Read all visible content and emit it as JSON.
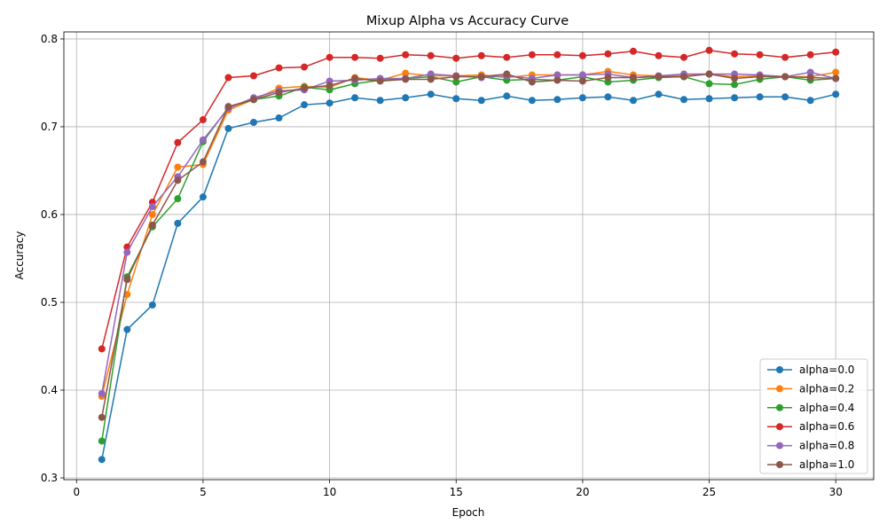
{
  "chart_data": {
    "type": "line",
    "title": "Mixup Alpha vs Accuracy Curve",
    "xlabel": "Epoch",
    "ylabel": "Accuracy",
    "xlim": [
      -0.5,
      31.5
    ],
    "ylim": [
      0.298,
      0.808
    ],
    "xticks": [
      0,
      5,
      10,
      15,
      20,
      25,
      30
    ],
    "yticks": [
      0.3,
      0.4,
      0.5,
      0.6,
      0.7,
      0.8
    ],
    "grid": true,
    "legend_position": "bottom-right",
    "x": [
      1,
      2,
      3,
      4,
      5,
      6,
      7,
      8,
      9,
      10,
      11,
      12,
      13,
      14,
      15,
      16,
      17,
      18,
      19,
      20,
      21,
      22,
      23,
      24,
      25,
      26,
      27,
      28,
      29,
      30
    ],
    "series": [
      {
        "name": "alpha=0.0",
        "color": "#1f77b4",
        "values": [
          0.321,
          0.469,
          0.497,
          0.59,
          0.62,
          0.698,
          0.705,
          0.71,
          0.725,
          0.727,
          0.733,
          0.73,
          0.733,
          0.737,
          0.732,
          0.73,
          0.735,
          0.73,
          0.731,
          0.733,
          0.734,
          0.73,
          0.737,
          0.731,
          0.732,
          0.733,
          0.734,
          0.734,
          0.73,
          0.737
        ]
      },
      {
        "name": "alpha=0.2",
        "color": "#ff7f0e",
        "values": [
          0.393,
          0.509,
          0.6,
          0.654,
          0.657,
          0.719,
          0.731,
          0.744,
          0.746,
          0.745,
          0.756,
          0.753,
          0.761,
          0.758,
          0.758,
          0.759,
          0.756,
          0.759,
          0.759,
          0.759,
          0.763,
          0.759,
          0.758,
          0.758,
          0.76,
          0.757,
          0.758,
          0.757,
          0.757,
          0.762
        ]
      },
      {
        "name": "alpha=0.4",
        "color": "#2ca02c",
        "values": [
          0.342,
          0.529,
          0.586,
          0.618,
          0.683,
          0.722,
          0.731,
          0.735,
          0.745,
          0.742,
          0.749,
          0.753,
          0.755,
          0.757,
          0.751,
          0.757,
          0.753,
          0.754,
          0.753,
          0.757,
          0.751,
          0.753,
          0.756,
          0.757,
          0.749,
          0.748,
          0.754,
          0.757,
          0.753,
          0.755
        ]
      },
      {
        "name": "alpha=0.6",
        "color": "#d62728",
        "values": [
          0.447,
          0.563,
          0.614,
          0.682,
          0.708,
          0.756,
          0.758,
          0.767,
          0.768,
          0.779,
          0.779,
          0.778,
          0.782,
          0.781,
          0.778,
          0.781,
          0.779,
          0.782,
          0.782,
          0.781,
          0.783,
          0.786,
          0.781,
          0.779,
          0.787,
          0.783,
          0.782,
          0.779,
          0.782,
          0.785
        ]
      },
      {
        "name": "alpha=0.8",
        "color": "#9467bd",
        "values": [
          0.396,
          0.557,
          0.609,
          0.643,
          0.685,
          0.721,
          0.733,
          0.741,
          0.742,
          0.752,
          0.753,
          0.755,
          0.755,
          0.76,
          0.758,
          0.756,
          0.758,
          0.755,
          0.759,
          0.759,
          0.76,
          0.756,
          0.758,
          0.76,
          0.76,
          0.76,
          0.759,
          0.757,
          0.762,
          0.755
        ]
      },
      {
        "name": "alpha=1.0",
        "color": "#8c564b",
        "values": [
          0.369,
          0.526,
          0.588,
          0.639,
          0.66,
          0.723,
          0.731,
          0.739,
          0.744,
          0.747,
          0.755,
          0.752,
          0.754,
          0.754,
          0.757,
          0.757,
          0.76,
          0.751,
          0.753,
          0.752,
          0.756,
          0.756,
          0.757,
          0.757,
          0.76,
          0.755,
          0.757,
          0.757,
          0.756,
          0.755
        ]
      }
    ]
  }
}
